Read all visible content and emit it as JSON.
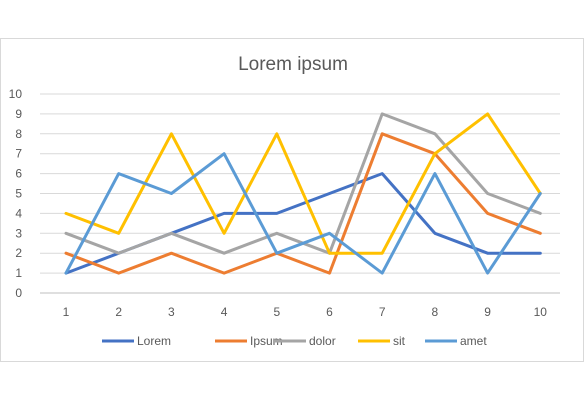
{
  "chart_data": {
    "type": "line",
    "title": "Lorem ipsum",
    "xlabel": "",
    "ylabel": "",
    "categories": [
      "1",
      "2",
      "3",
      "4",
      "5",
      "6",
      "7",
      "8",
      "9",
      "10"
    ],
    "ylim": [
      0,
      10
    ],
    "yticks": [
      "0",
      "1",
      "2",
      "3",
      "4",
      "5",
      "6",
      "7",
      "8",
      "9",
      "10"
    ],
    "grid": true,
    "legend_position": "bottom",
    "series": [
      {
        "name": "Lorem",
        "color": "#4472C4",
        "values": [
          1,
          2,
          3,
          4,
          4,
          5,
          6,
          3,
          2,
          2
        ]
      },
      {
        "name": "Ipsum",
        "color": "#ED7D31",
        "values": [
          2,
          1,
          2,
          1,
          2,
          1,
          8,
          7,
          4,
          3
        ]
      },
      {
        "name": "dolor",
        "color": "#A5A5A5",
        "values": [
          3,
          2,
          3,
          2,
          3,
          2,
          9,
          8,
          5,
          4
        ]
      },
      {
        "name": "sit",
        "color": "#FFC000",
        "values": [
          4,
          3,
          8,
          3,
          8,
          2,
          2,
          7,
          9,
          5
        ]
      },
      {
        "name": "amet",
        "color": "#5B9BD5",
        "values": [
          1,
          6,
          5,
          7,
          2,
          3,
          1,
          6,
          1,
          5
        ]
      }
    ]
  }
}
